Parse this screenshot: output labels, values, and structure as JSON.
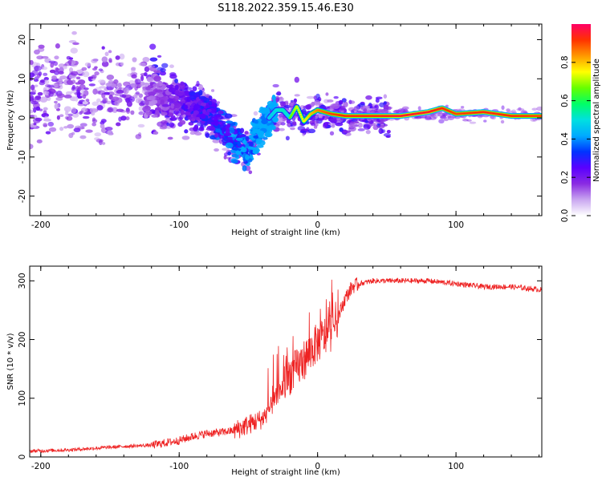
{
  "figure_title": "S118.2022.359.15.46.E30",
  "chart_data": [
    {
      "type": "heatmap",
      "title": "",
      "xlabel": "Height of straight line (km)",
      "ylabel": "Frequency (Hz)",
      "xlim": [
        -208,
        162
      ],
      "ylim": [
        -25,
        24
      ],
      "xticks": [
        -200,
        -100,
        0,
        100
      ],
      "yticks": [
        -20,
        -10,
        0,
        10,
        20
      ],
      "colorbar": {
        "label": "Normalized spectral amplitude",
        "range": [
          0,
          1
        ],
        "ticks": [
          0.0,
          0.2,
          0.4,
          0.6,
          0.8
        ],
        "colormap": [
          "#ffffff",
          "#c9a6f0",
          "#8a2be2",
          "#5a00ff",
          "#0033ff",
          "#00aaff",
          "#00e0e0",
          "#00ff66",
          "#66ff00",
          "#ffff00",
          "#ff9900",
          "#ff3300",
          "#ff0066"
        ]
      },
      "ridge": {
        "x": [
          -120,
          -100,
          -80,
          -70,
          -60,
          -50,
          -45,
          -40,
          -35,
          -30,
          -25,
          -20,
          -15,
          -10,
          -5,
          0,
          10,
          20,
          40,
          60,
          80,
          90,
          100,
          120,
          140,
          160
        ],
        "freq": [
          6,
          4,
          2,
          -2,
          -6,
          -8,
          -5,
          -2,
          0,
          2,
          2,
          0,
          3,
          -1,
          1,
          2,
          1,
          0.5,
          0.5,
          0.5,
          1.5,
          2.5,
          1,
          1.5,
          0.5,
          0.5
        ],
        "amplitude": [
          0.15,
          0.25,
          0.3,
          0.35,
          0.4,
          0.45,
          0.55,
          0.6,
          0.62,
          0.65,
          0.7,
          0.65,
          0.72,
          0.75,
          0.8,
          0.85,
          0.9,
          0.92,
          0.92,
          0.95,
          0.95,
          0.92,
          0.9,
          0.93,
          0.92,
          0.9
        ]
      }
    },
    {
      "type": "line",
      "title": "",
      "xlabel": "Height of straight line (km)",
      "ylabel": "SNR (10 * v/v)",
      "xlim": [
        -208,
        162
      ],
      "ylim": [
        0,
        325
      ],
      "xticks": [
        -200,
        -100,
        0,
        100
      ],
      "yticks": [
        0,
        100,
        200,
        300
      ],
      "color": "#ee2222",
      "series": [
        {
          "x": [
            -208,
            -180,
            -160,
            -140,
            -120,
            -100,
            -90,
            -80,
            -70,
            -60,
            -50,
            -40,
            -35,
            -30,
            -25,
            -20,
            -15,
            -10,
            -5,
            0,
            5,
            10,
            15,
            20,
            25,
            30,
            40,
            60,
            80,
            100,
            120,
            140,
            160
          ],
          "values": [
            10,
            12,
            15,
            18,
            20,
            28,
            35,
            40,
            42,
            45,
            55,
            65,
            80,
            100,
            120,
            140,
            150,
            165,
            180,
            195,
            205,
            215,
            240,
            270,
            290,
            295,
            300,
            300,
            300,
            295,
            290,
            290,
            285
          ]
        }
      ]
    }
  ]
}
